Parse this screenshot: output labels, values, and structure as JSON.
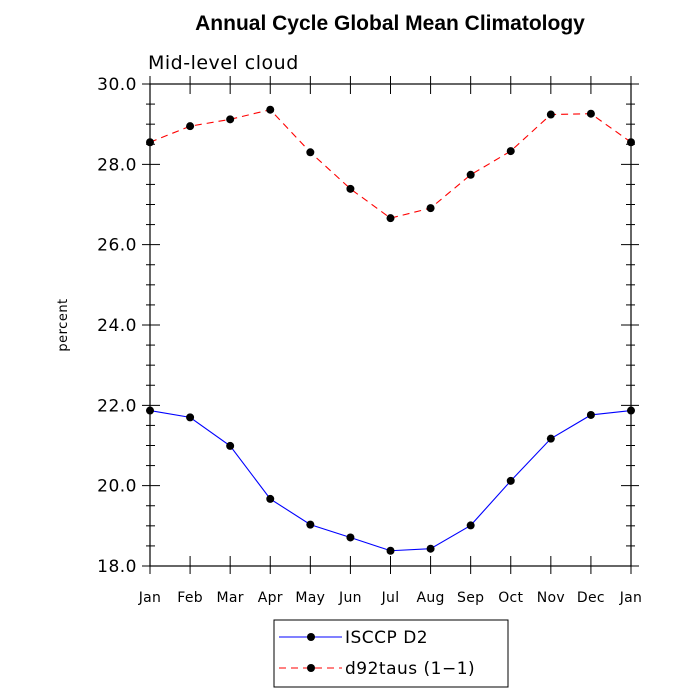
{
  "chart_data": {
    "type": "line",
    "title": "Annual Cycle Global Mean Climatology",
    "subtitle": "Mid-level cloud",
    "xlabel": "",
    "ylabel": "percent",
    "categories": [
      "Jan",
      "Feb",
      "Mar",
      "Apr",
      "May",
      "Jun",
      "Jul",
      "Aug",
      "Sep",
      "Oct",
      "Nov",
      "Dec",
      "Jan"
    ],
    "ylim": [
      18.0,
      30.0
    ],
    "yticks": [
      "18.0",
      "20.0",
      "22.0",
      "24.0",
      "26.0",
      "28.0",
      "30.0"
    ],
    "series": [
      {
        "name": "ISCCP D2",
        "color": "#0000ff",
        "dash": "solid",
        "marker": "filled-circle",
        "values": [
          21.87,
          21.7,
          20.99,
          19.67,
          19.03,
          18.71,
          18.38,
          18.43,
          19.01,
          20.12,
          21.17,
          21.76,
          21.87
        ]
      },
      {
        "name": "d92taus (1-1)",
        "color": "#ff0000",
        "dash": "dashed",
        "marker": "filled-circle",
        "values": [
          28.55,
          28.95,
          29.12,
          29.36,
          28.3,
          27.39,
          26.66,
          26.91,
          27.74,
          28.33,
          29.24,
          29.26,
          28.55
        ]
      }
    ],
    "legend": {
      "position": "bottom-center",
      "entries": [
        "ISCCP D2",
        "d92taus (1−1)"
      ]
    }
  }
}
